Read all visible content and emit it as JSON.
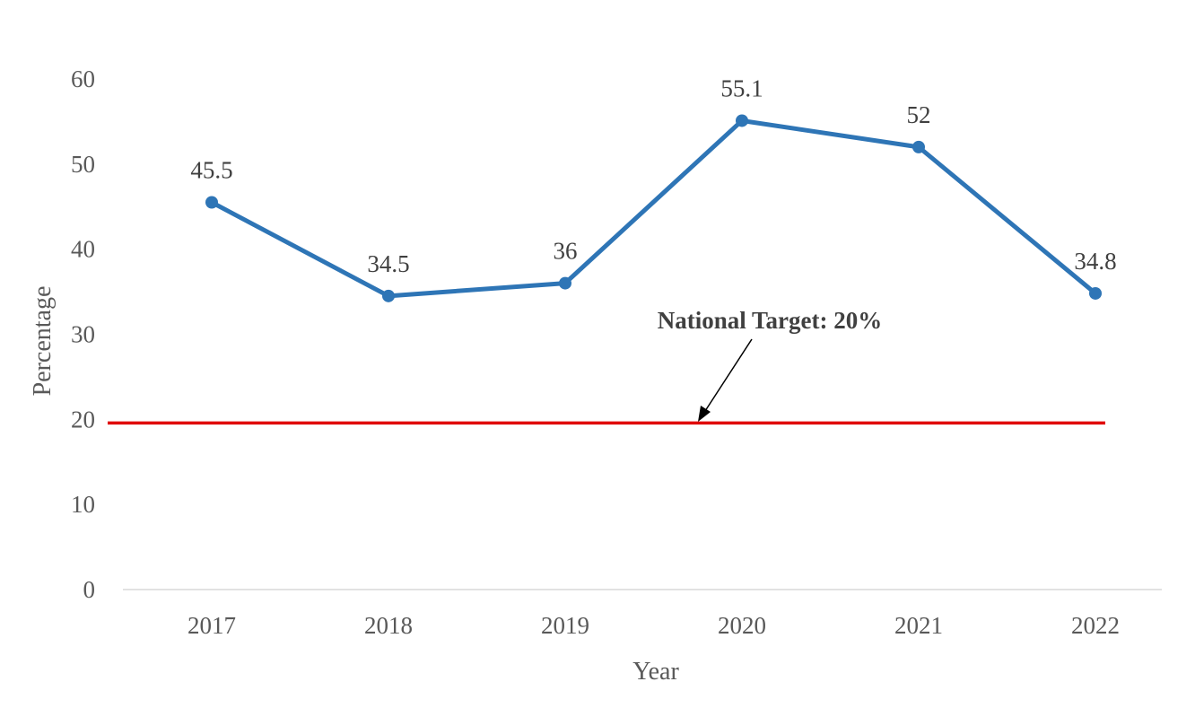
{
  "chart_data": {
    "type": "line",
    "title": "",
    "xlabel": "Year",
    "ylabel": "Percentage",
    "categories": [
      "2017",
      "2018",
      "2019",
      "2020",
      "2021",
      "2022"
    ],
    "series": [
      {
        "values": [
          45.5,
          34.5,
          36,
          55.1,
          52,
          34.8
        ],
        "labels": [
          "45.5",
          "34.5",
          "36",
          "55.1",
          "52",
          "34.8"
        ],
        "color": "#2E75B6"
      }
    ],
    "ylim": [
      0,
      60
    ],
    "yticks": [
      "0",
      "10",
      "20",
      "30",
      "40",
      "50",
      "60"
    ],
    "grid": false,
    "legend": "none",
    "reference_line": {
      "value": 20,
      "color": "#E00000",
      "label": "National Target: 20%"
    }
  }
}
